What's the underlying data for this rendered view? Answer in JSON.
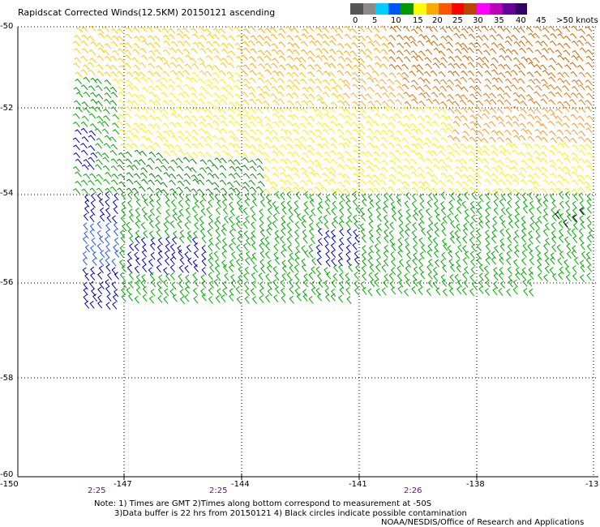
{
  "title": "Rapidscat Corrected Winds(12.5KM) 20150121 ascending",
  "scale": {
    "labels": [
      "0",
      "5",
      "10",
      "15",
      "20",
      "25",
      "30",
      "35",
      "40",
      "45",
      ">50 knots"
    ],
    "colors": [
      "#555555",
      "#8a8a8a",
      "#00ccff",
      "#0055ff",
      "#009900",
      "#ffff00",
      "#ffaa00",
      "#ff5500",
      "#ff0000",
      "#bb4400",
      "#ff00ff",
      "#bb00bb",
      "#660099",
      "#330066"
    ]
  },
  "lat_labels": [
    "-50",
    "-52",
    "-54",
    "-56",
    "-58",
    "-60"
  ],
  "lon_labels": [
    "-150",
    "-147",
    "-144",
    "-141",
    "-138",
    "-13"
  ],
  "time_labels": [
    "2:25",
    "2:25",
    "2:26"
  ],
  "notes": {
    "line1": "Note: 1) Times are GMT 2)Times along bottom correspond to measurement at -50S",
    "line2": "3)Data buffer is 22 hrs from 20150121 4) Black circles indicate possible contamination",
    "line3": "NOAA/NESDIS/Office of Research and Applications"
  }
}
